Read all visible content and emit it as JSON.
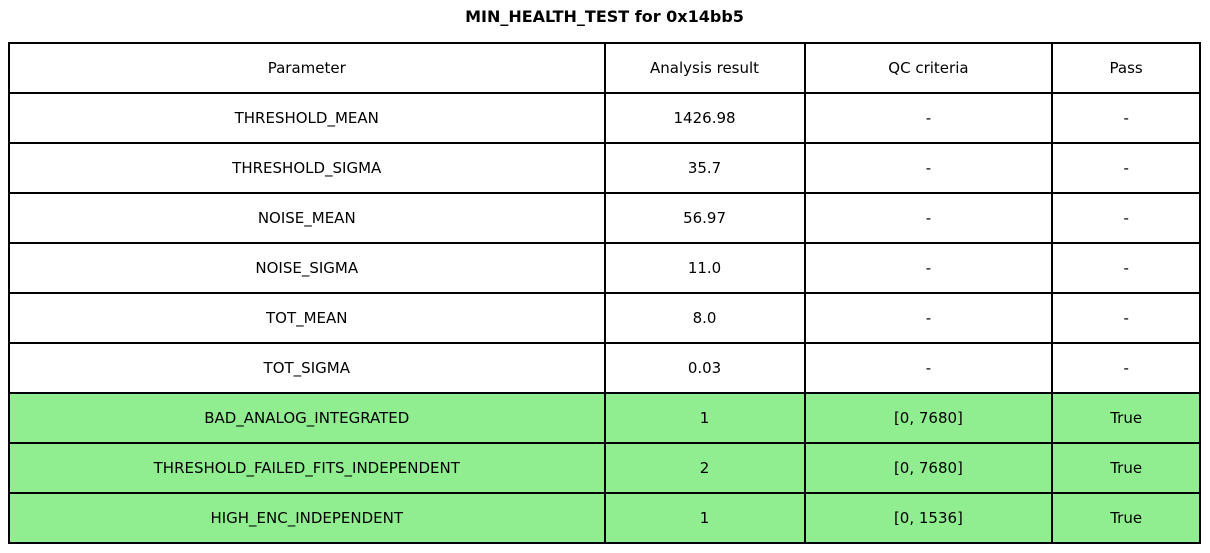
{
  "title": "MIN_HEALTH_TEST for 0x14bb5",
  "chart_data": {
    "type": "table",
    "title": "MIN_HEALTH_TEST for 0x14bb5",
    "columns": [
      "Parameter",
      "Analysis result",
      "QC criteria",
      "Pass"
    ],
    "rows": [
      [
        "THRESHOLD_MEAN",
        "1426.98",
        "-",
        "-"
      ],
      [
        "THRESHOLD_SIGMA",
        "35.7",
        "-",
        "-"
      ],
      [
        "NOISE_MEAN",
        "56.97",
        "-",
        "-"
      ],
      [
        "NOISE_SIGMA",
        "11.0",
        "-",
        "-"
      ],
      [
        "TOT_MEAN",
        "8.0",
        "-",
        "-"
      ],
      [
        "TOT_SIGMA",
        "0.03",
        "-",
        "-"
      ],
      [
        "BAD_ANALOG_INTEGRATED",
        "1",
        "[0, 7680]",
        "True"
      ],
      [
        "THRESHOLD_FAILED_FITS_INDEPENDENT",
        "2",
        "[0, 7680]",
        "True"
      ],
      [
        "HIGH_ENC_INDEPENDENT",
        "1",
        "[0, 1536]",
        "True"
      ]
    ],
    "highlighted_rows": [
      6,
      7,
      8
    ],
    "highlight_color": "#90EE90",
    "layout": {
      "border_color": "#000000",
      "background_color": "#ffffff",
      "column_width_fractions": [
        0.5,
        0.168,
        0.208,
        0.124
      ],
      "grid": "all-cell-borders",
      "legend": "none"
    }
  }
}
